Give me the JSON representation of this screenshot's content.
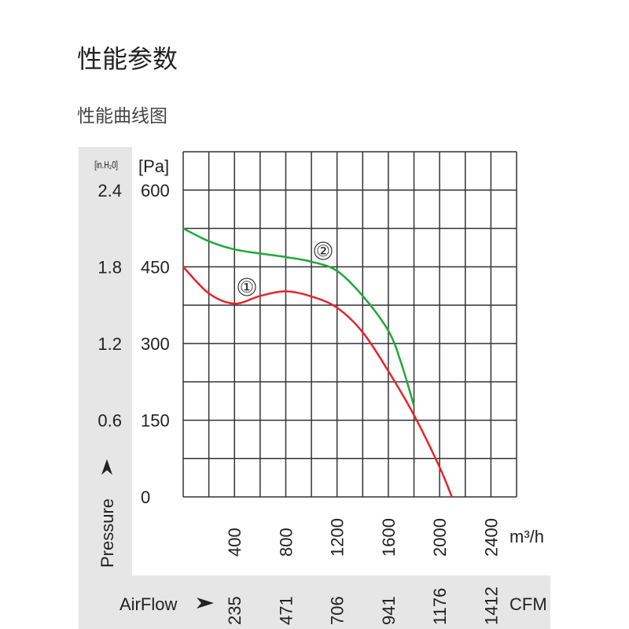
{
  "page": {
    "title": "性能参数",
    "subtitle": "性能曲线图"
  },
  "chart_data": {
    "type": "line",
    "xlabel": "AirFlow",
    "ylabel": "Pressure",
    "x_unit": "m³/h",
    "x_unit_secondary": "CFM",
    "y_unit": "[Pa]",
    "y_unit_secondary": "[in.H₂0]",
    "xlim": [
      0,
      2600
    ],
    "ylim": [
      0,
      675
    ],
    "grid": true,
    "x_ticks": [
      400,
      800,
      1200,
      1600,
      2000,
      2400
    ],
    "x_ticks_secondary": [
      "235",
      "471",
      "706",
      "941",
      "1176",
      "1412"
    ],
    "y_ticks": [
      0,
      150,
      300,
      450,
      600
    ],
    "y_ticks_secondary": [
      "0.6",
      "1.2",
      "1.8",
      "2.4"
    ],
    "series": [
      {
        "name": "①",
        "color": "#e8232a",
        "x": [
          0,
          200,
          400,
          600,
          800,
          1000,
          1200,
          1400,
          1600,
          1800,
          2000,
          2095
        ],
        "y": [
          450,
          398,
          378,
          393,
          402,
          392,
          370,
          322,
          246,
          160,
          58,
          0
        ]
      },
      {
        "name": "②",
        "color": "#1fa83c",
        "x": [
          0,
          200,
          400,
          600,
          800,
          1000,
          1200,
          1400,
          1600,
          1700,
          1800
        ],
        "y": [
          525,
          500,
          484,
          476,
          469,
          460,
          442,
          393,
          325,
          262,
          178
        ]
      }
    ]
  }
}
